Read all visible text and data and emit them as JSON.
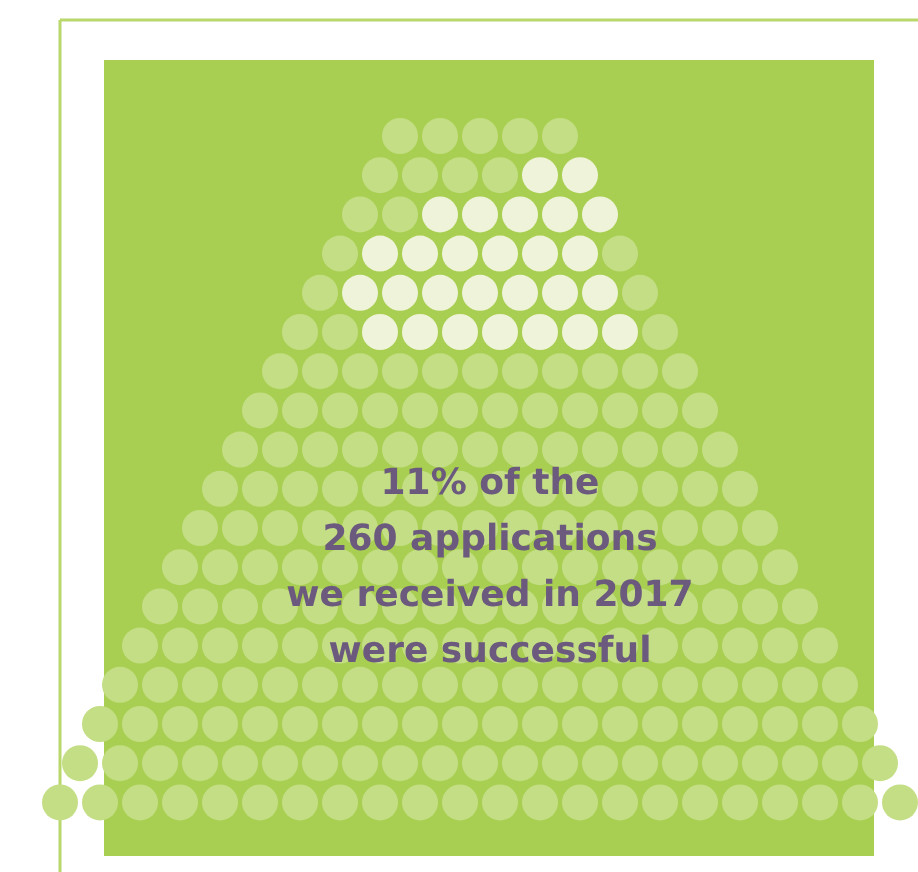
{
  "chart_data": {
    "type": "other",
    "values": [
      11
    ],
    "value_labels": [
      "11%"
    ],
    "annotations": [
      "of the",
      "260 applications",
      "we received in 2017",
      "were successful"
    ]
  }
}
